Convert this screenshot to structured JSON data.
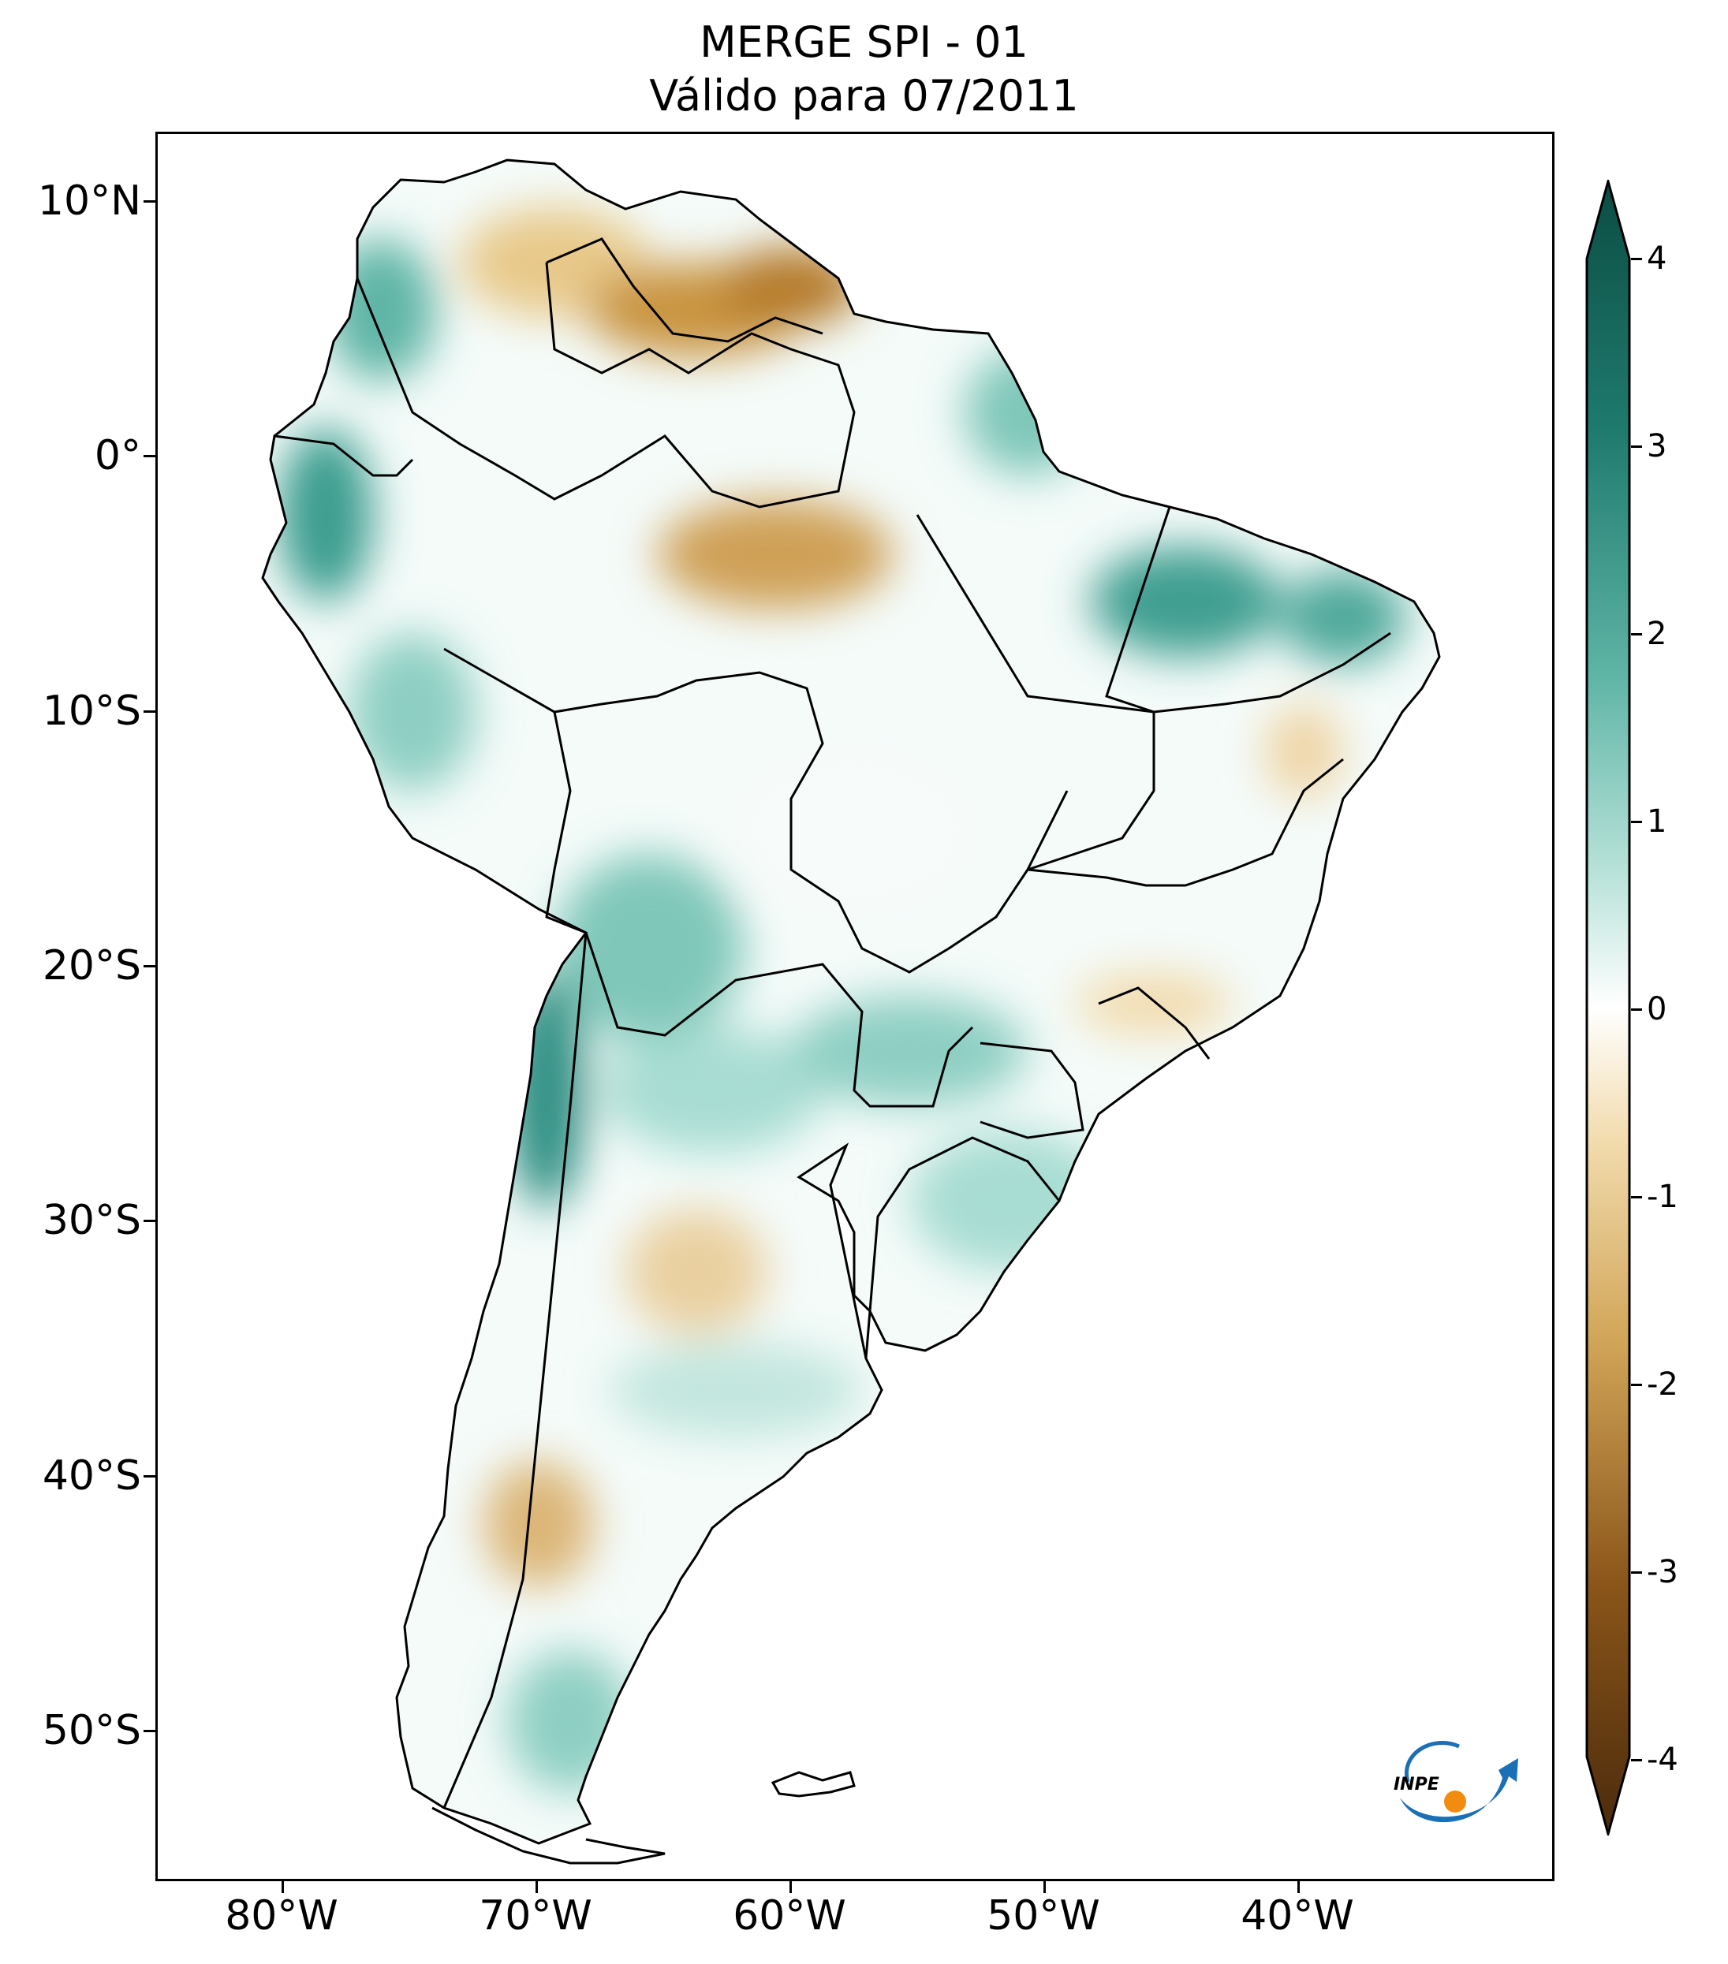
{
  "title": {
    "line1": "MERGE   SPI - 01",
    "line2": "Válido para 07/2011"
  },
  "axes": {
    "lat_labels": [
      "10°N",
      "0°",
      "10°S",
      "20°S",
      "30°S",
      "40°S",
      "50°S"
    ],
    "lon_labels": [
      "80°W",
      "70°W",
      "60°W",
      "50°W",
      "40°W"
    ]
  },
  "colorbar": {
    "labels": [
      "4",
      "3",
      "2",
      "1",
      "0",
      "-1",
      "-2",
      "-3",
      "-4"
    ],
    "colors": {
      "high": "#0b4d43",
      "mid_high": "#2f8f83",
      "light_high": "#a8ddd3",
      "zero": "#ffffff",
      "light_low": "#f2dcae",
      "mid_low": "#b57a2a",
      "low": "#4b2b0c"
    }
  },
  "logo": {
    "text": "INPE",
    "colors": {
      "arrow": "#1a6fb5",
      "dot": "#f28c0f"
    }
  }
}
